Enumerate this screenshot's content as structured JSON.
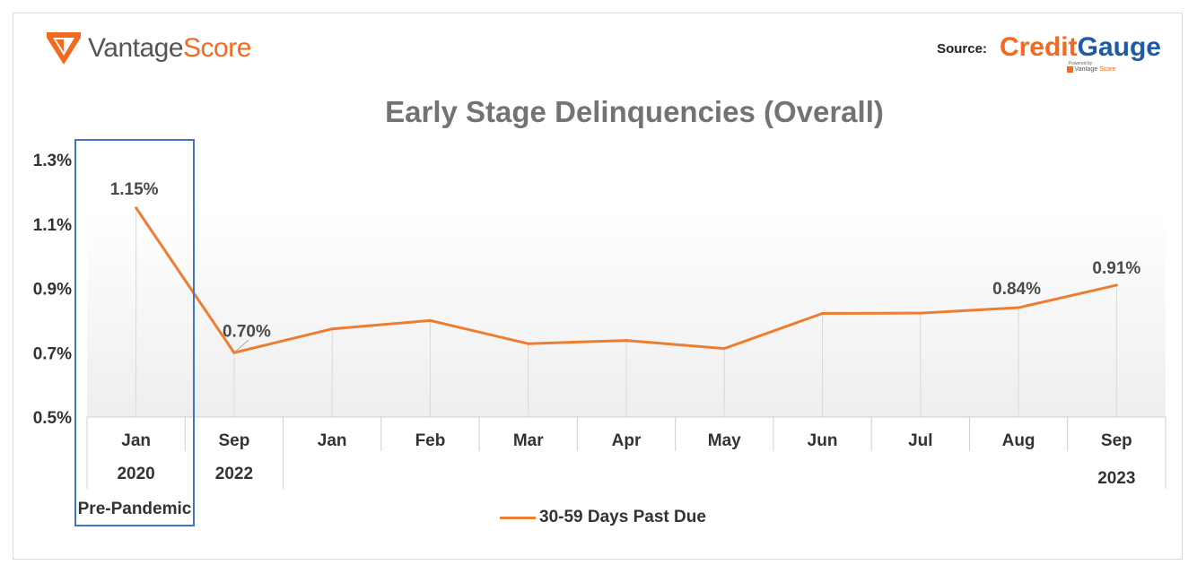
{
  "branding": {
    "logo_text_a": "Vantage",
    "logo_text_b": "Score",
    "source_label": "Source:",
    "credit_gauge_a": "Credit",
    "credit_gauge_b": "Gauge",
    "powered_by": "Powered by",
    "powered_vantage_a": "Vantage",
    "powered_vantage_b": "Score",
    "brand_orange": "#f26a21",
    "brand_blue": "#1e5aa8"
  },
  "chart_data": {
    "type": "line",
    "title": "Early Stage Delinquencies (Overall)",
    "categories": [
      "Jan",
      "Sep",
      "Jan",
      "Feb",
      "Mar",
      "Apr",
      "May",
      "Jun",
      "Jul",
      "Aug",
      "Sep"
    ],
    "group_labels": [
      {
        "text": "2020",
        "category_index": 0
      },
      {
        "text": "2022",
        "category_index": 1
      },
      {
        "text": "2023",
        "category_index": 10
      }
    ],
    "highlight": {
      "text": "Pre-Pandemic",
      "category_index": 0,
      "color": "#4472c4"
    },
    "series": [
      {
        "name": "30-59 Days Past Due",
        "color": "#ed7d31",
        "values": [
          1.15,
          0.7,
          0.774,
          0.8,
          0.728,
          0.738,
          0.713,
          0.822,
          0.823,
          0.84,
          0.91
        ]
      }
    ],
    "data_labels": [
      {
        "index": 0,
        "text": "1.15%"
      },
      {
        "index": 1,
        "text": "0.70%"
      },
      {
        "index": 9,
        "text": "0.84%"
      },
      {
        "index": 10,
        "text": "0.91%"
      }
    ],
    "yticks": [
      0.5,
      0.7,
      0.9,
      1.1,
      1.3
    ],
    "ytick_labels": [
      "0.5%",
      "0.7%",
      "0.9%",
      "1.1%",
      "1.3%"
    ],
    "ylim": [
      0.5,
      1.3
    ],
    "grid": false,
    "legend_position": "bottom"
  }
}
